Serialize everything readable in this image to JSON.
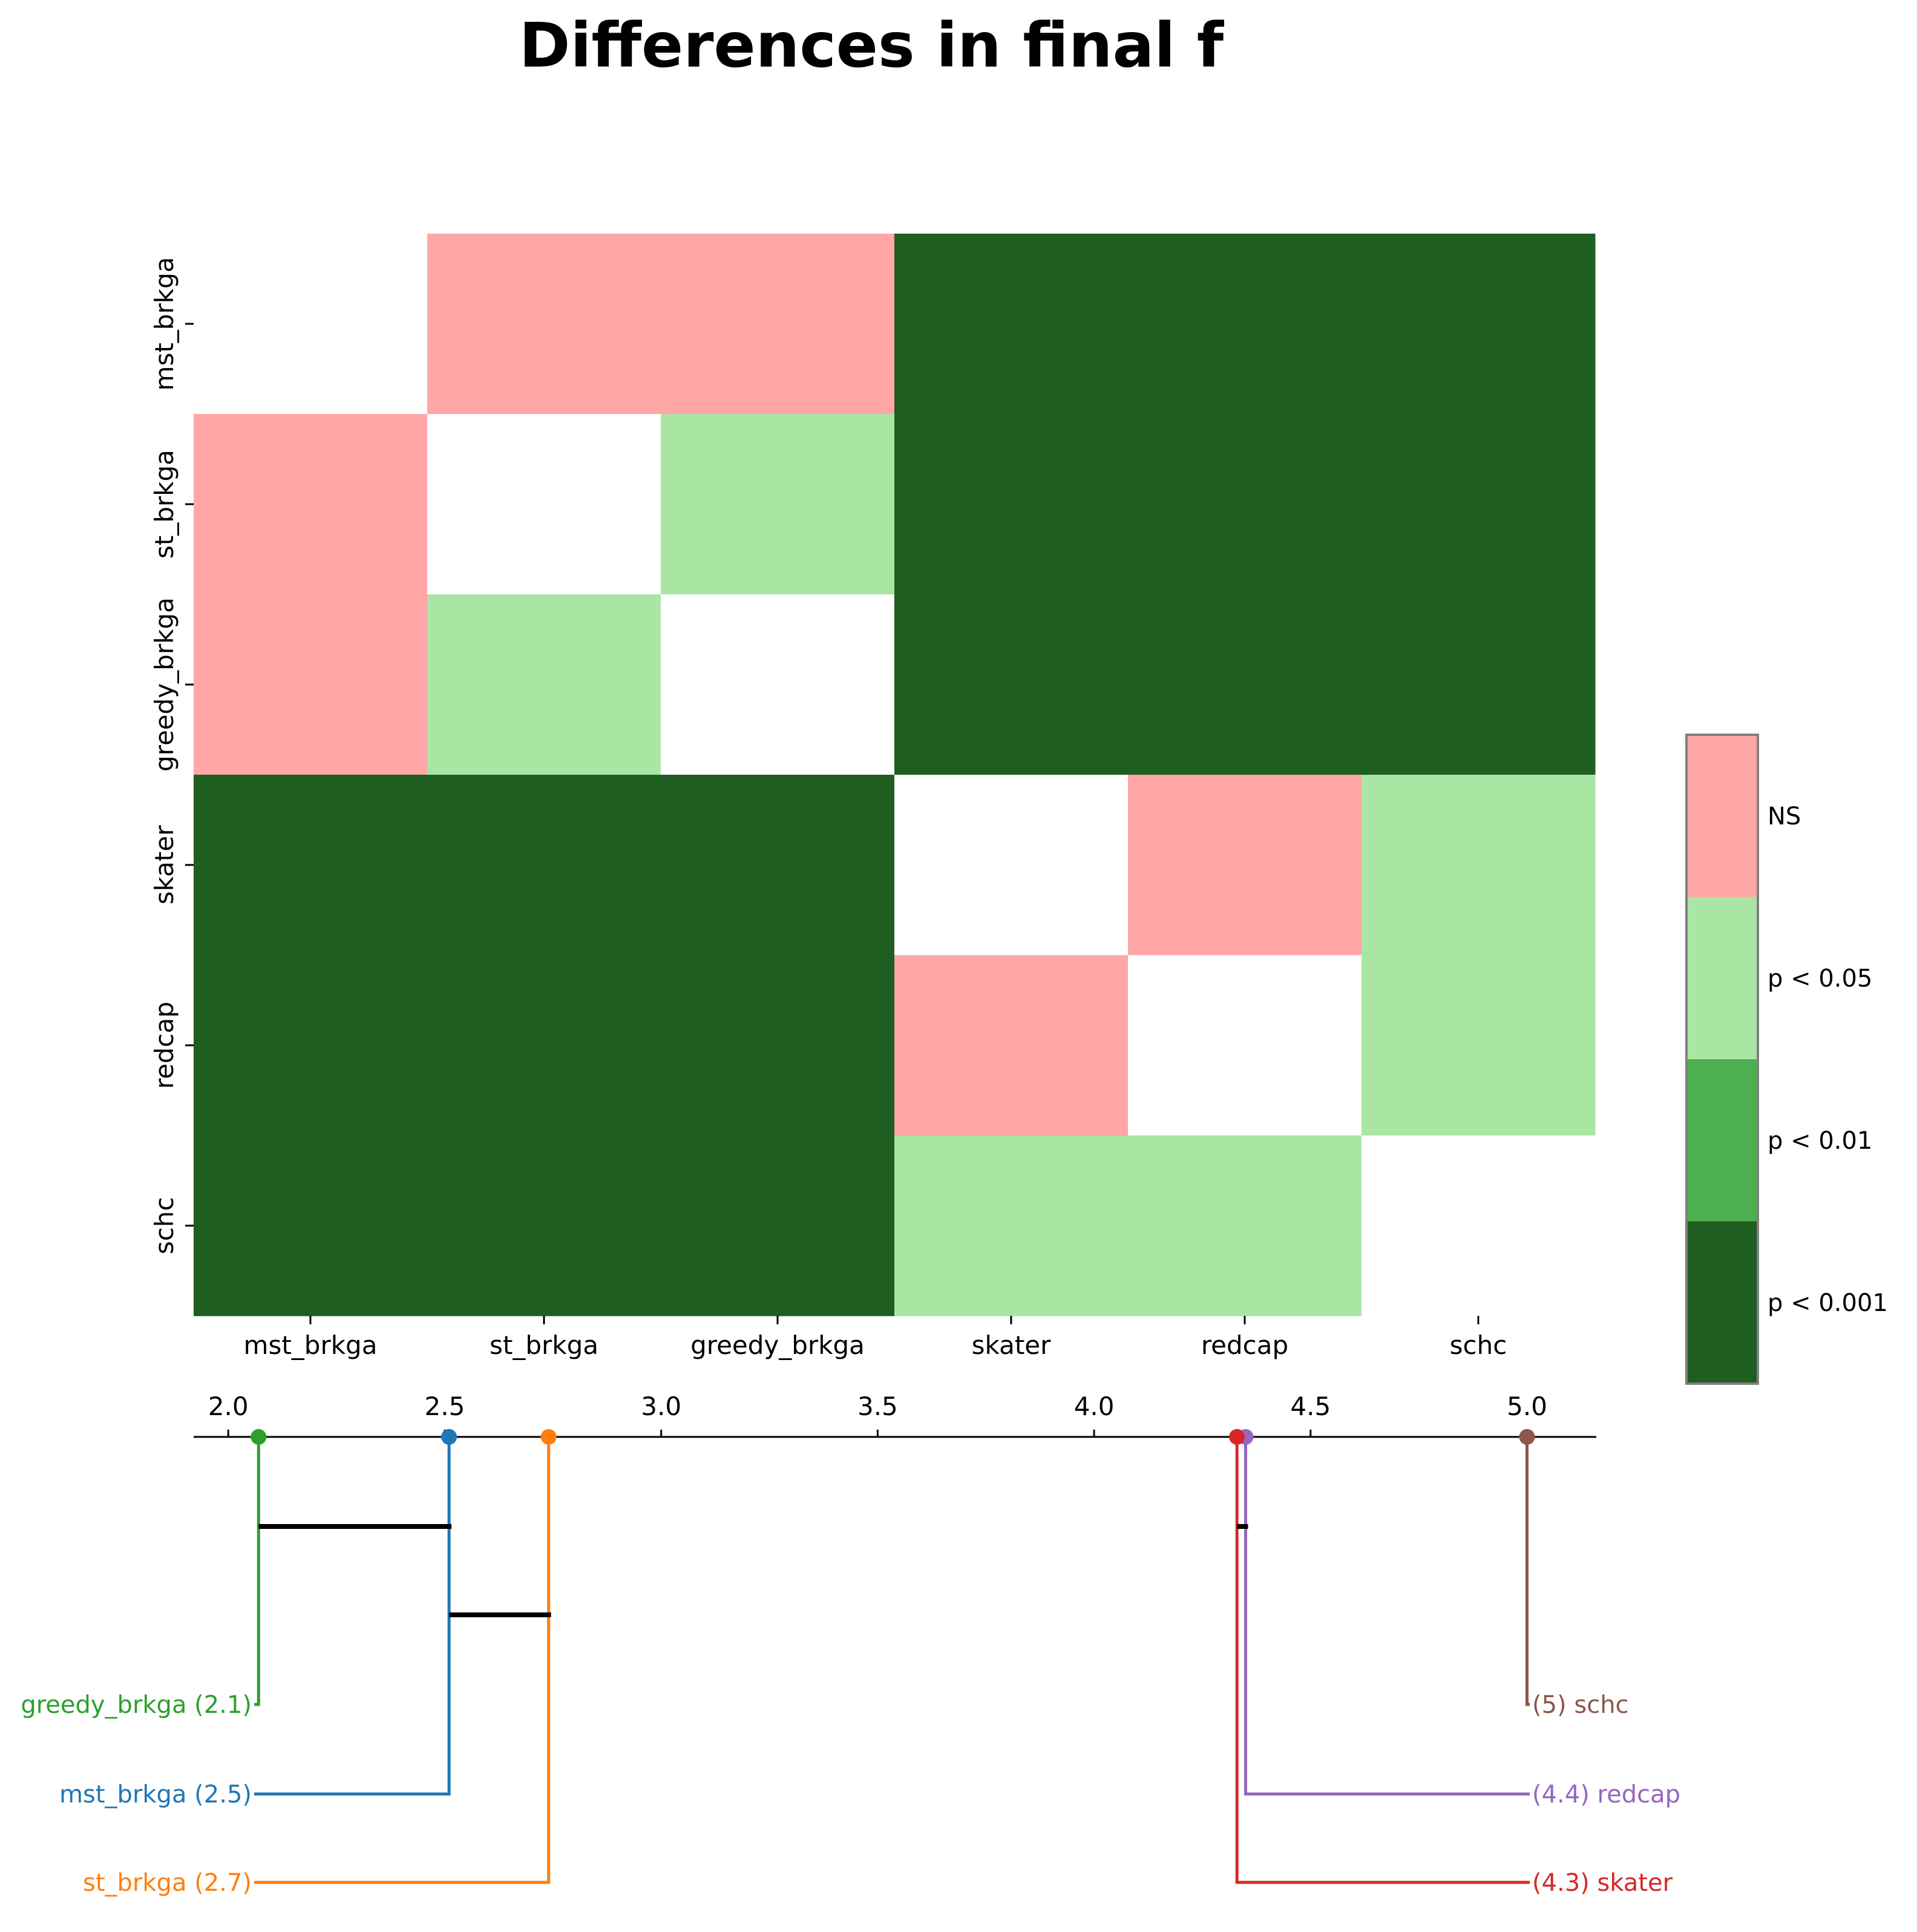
{
  "chart_data": [
    {
      "type": "heatmap",
      "title": "Differences in final f",
      "rows": [
        "mst_brkga",
        "st_brkga",
        "greedy_brkga",
        "skater",
        "redcap",
        "schc"
      ],
      "columns": [
        "mst_brkga",
        "st_brkga",
        "greedy_brkga",
        "skater",
        "redcap",
        "schc"
      ],
      "cell_levels": [
        [
          null,
          "NS",
          "NS",
          "p < 0.001",
          "p < 0.001",
          "p < 0.001"
        ],
        [
          "NS",
          null,
          "p < 0.05",
          "p < 0.001",
          "p < 0.001",
          "p < 0.001"
        ],
        [
          "NS",
          "p < 0.05",
          null,
          "p < 0.001",
          "p < 0.001",
          "p < 0.001"
        ],
        [
          "p < 0.001",
          "p < 0.001",
          "p < 0.001",
          null,
          "NS",
          "p < 0.05"
        ],
        [
          "p < 0.001",
          "p < 0.001",
          "p < 0.001",
          "NS",
          null,
          "p < 0.05"
        ],
        [
          "p < 0.001",
          "p < 0.001",
          "p < 0.001",
          "p < 0.05",
          "p < 0.05",
          null
        ]
      ],
      "legend": [
        {
          "label": "NS",
          "color": "#ffa6a6"
        },
        {
          "label": "p < 0.05",
          "color": "#a9e6a3"
        },
        {
          "label": "p < 0.01",
          "color": "#4caf50"
        },
        {
          "label": "p < 0.001",
          "color": "#1e5e20"
        }
      ],
      "legend_placement": "right"
    },
    {
      "type": "critical-difference",
      "axis_ticks": [
        2.0,
        2.5,
        3.0,
        3.5,
        4.0,
        4.5,
        5.0
      ],
      "axis_range": [
        1.92,
        5.16
      ],
      "ranks": [
        {
          "name": "greedy_brkga",
          "rank": 2.07,
          "label": "greedy_brkga (2.1)",
          "color": "#2ca02c",
          "side": "left"
        },
        {
          "name": "mst_brkga",
          "rank": 2.51,
          "label": "mst_brkga (2.5)",
          "color": "#1f77b4",
          "side": "left"
        },
        {
          "name": "st_brkga",
          "rank": 2.74,
          "label": "st_brkga (2.7)",
          "color": "#ff7f0e",
          "side": "left"
        },
        {
          "name": "schc",
          "rank": 5.0,
          "label": "(5) schc",
          "color": "#8c564b",
          "side": "right"
        },
        {
          "name": "redcap",
          "rank": 4.35,
          "label": "(4.4) redcap",
          "color": "#9467bd",
          "side": "right"
        },
        {
          "name": "skater",
          "rank": 4.33,
          "label": "(4.3) skater",
          "color": "#d62728",
          "side": "right"
        }
      ],
      "cliques": [
        [
          2.07,
          2.51
        ],
        [
          2.51,
          2.74
        ],
        [
          4.33,
          4.35
        ]
      ]
    }
  ]
}
